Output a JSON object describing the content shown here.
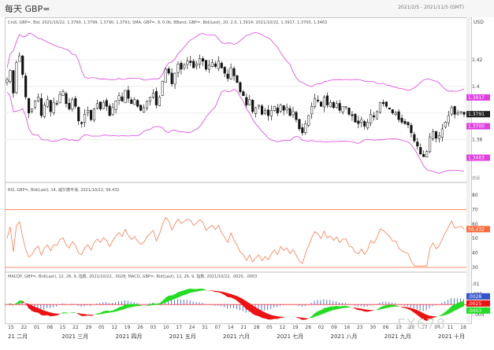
{
  "header": {
    "title": "每天 GBP=",
    "date_range": "2021/2/5 - 2021/11/5 (GMT)"
  },
  "panels": {
    "price": {
      "name_text": "Cndl, GBP=, Bid, 2021/10/22, 1.3790, 1.3799, 1.3790, 1.3791; SMA, GBP=, 9, 0.0k; BBand, GBP=, Bid(Last), 20, 2.0, 1.3914; 2021/10/22, 1.3917, 1.3700, 1.3463",
      "unit": "价格\nUSD",
      "currency": "USD"
    },
    "rsi": {
      "name_text": "RSI, GBP=, Bid(Last), 14, 威尔德平滑, 2021/10/22, 56.432",
      "unit": "值\nUSD"
    },
    "macd": {
      "name_text": "MACDP, GBP=, Bid(Last), 12, 26, 9, 指数, 2021/10/22, .0028; MACD, GBP=, Bid(Last), 12, 26, 9, 指数, 2021/10/22, .0025, .0003",
      "unit": "值\nUSD"
    }
  },
  "badges": {
    "bb_upper": "1.3917",
    "close": "1.3791",
    "bb_mid": "1.3700",
    "bb_lower": "1.3463",
    "rsi_value": "56.432",
    "macd_a": ".0028",
    "macd_b": ".0025",
    "macd_c": ".0003"
  },
  "watermark": "FX678",
  "chart_data": [
    {
      "type": "candlestick",
      "title": "每天 GBP=",
      "ylabel": "价格 USD",
      "ylim": [
        1.33,
        1.445
      ],
      "y_ticks": [
        "1.42",
        "1.4",
        "1.38",
        "1.36"
      ],
      "grid": true,
      "bollinger_bands": {
        "period": 20,
        "stddev": 2.0,
        "last_upper": 1.3917,
        "last_mid": 1.37,
        "last_lower": 1.3463
      },
      "x_tick_labels": [
        "15",
        "22",
        "01",
        "08",
        "15",
        "22",
        "29",
        "05",
        "12",
        "19",
        "26",
        "03",
        "10",
        "17",
        "24",
        "31",
        "07",
        "14",
        "21",
        "28",
        "05",
        "12",
        "19",
        "26",
        "02",
        "09",
        "16",
        "23",
        "30",
        "06",
        "13",
        "20",
        "27",
        "04",
        "11",
        "18"
      ],
      "month_labels": [
        "21 二月",
        "2021 三月",
        "2021 四月",
        "2021 五月",
        "2021 六月",
        "2021 七月",
        "2021 八月",
        "2021 九月",
        "2021 十月"
      ],
      "close_path": [
        1.405,
        1.412,
        1.395,
        1.418,
        1.423,
        1.409,
        1.392,
        1.38,
        1.383,
        1.389,
        1.392,
        1.378,
        1.386,
        1.39,
        1.381,
        1.388,
        1.387,
        1.394,
        1.396,
        1.387,
        1.383,
        1.39,
        1.385,
        1.374,
        1.372,
        1.379,
        1.382,
        1.375,
        1.383,
        1.387,
        1.383,
        1.388,
        1.385,
        1.378,
        1.384,
        1.389,
        1.393,
        1.389,
        1.397,
        1.391,
        1.387,
        1.39,
        1.385,
        1.382,
        1.384,
        1.389,
        1.392,
        1.395,
        1.386,
        1.392,
        1.404,
        1.413,
        1.41,
        1.402,
        1.41,
        1.417,
        1.413,
        1.416,
        1.419,
        1.418,
        1.414,
        1.417,
        1.421,
        1.419,
        1.413,
        1.416,
        1.418,
        1.415,
        1.419,
        1.414,
        1.41,
        1.406,
        1.414,
        1.408,
        1.403,
        1.396,
        1.393,
        1.386,
        1.39,
        1.381,
        1.384,
        1.386,
        1.379,
        1.382,
        1.378,
        1.382,
        1.385,
        1.38,
        1.386,
        1.382,
        1.384,
        1.378,
        1.381,
        1.375,
        1.368,
        1.365,
        1.372,
        1.378,
        1.385,
        1.391,
        1.389,
        1.385,
        1.392,
        1.386,
        1.388,
        1.384,
        1.387,
        1.382,
        1.385,
        1.385,
        1.379,
        1.378,
        1.373,
        1.372,
        1.375,
        1.37,
        1.373,
        1.379,
        1.377,
        1.381,
        1.388,
        1.387,
        1.385,
        1.383,
        1.38,
        1.38,
        1.375,
        1.373,
        1.372,
        1.371,
        1.365,
        1.359,
        1.355,
        1.349,
        1.347,
        1.351,
        1.362,
        1.366,
        1.361,
        1.363,
        1.368,
        1.373,
        1.378,
        1.384,
        1.379,
        1.38,
        1.381,
        1.379
      ],
      "rsi": {
        "ylim": [
          30,
          80
        ],
        "y_ticks": [
          "80",
          "70",
          "60",
          "50",
          "40",
          "30"
        ],
        "levels": [
          70,
          30
        ],
        "last": 56.432
      },
      "macd": {
        "y_ticks": [
          ".01",
          ".005",
          "0",
          "-.005"
        ],
        "params": "12, 26, 9",
        "last_macdp": 0.0028,
        "last_macd": 0.0025,
        "last_signal": 0.0003
      }
    }
  ]
}
